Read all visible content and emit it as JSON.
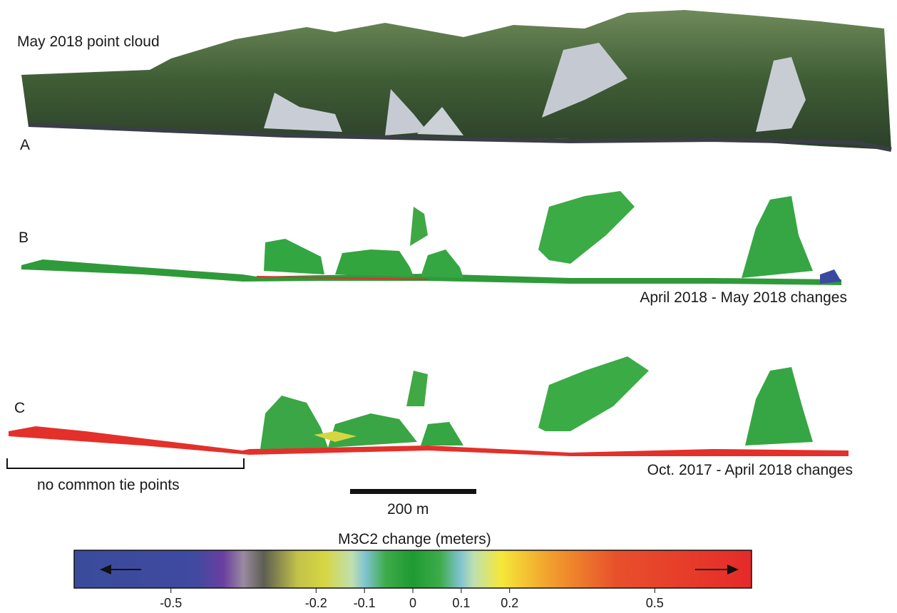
{
  "panels": {
    "a": {
      "letter": "A",
      "title": "May 2018 point cloud"
    },
    "b": {
      "letter": "B",
      "caption": "April 2018 - May 2018 changes"
    },
    "c": {
      "letter": "C",
      "caption": "Oct. 2017 - April 2018 changes"
    }
  },
  "annotation": {
    "bracket_label": "no common tie points"
  },
  "scale_bar": {
    "label": "200 m"
  },
  "colorbar": {
    "title": "M3C2 change (meters)",
    "tick_labels": [
      "-0.5",
      "-0.2",
      "-0.1",
      "0",
      "0.1",
      "0.2",
      "0.5"
    ],
    "tick_values": [
      -0.5,
      -0.2,
      -0.1,
      0,
      0.1,
      0.2,
      0.5
    ],
    "range": [
      -0.7,
      0.7
    ],
    "colors": {
      "negative": "#3b4a9a",
      "zero": "#2fa33a",
      "positive": "#e8302a"
    }
  }
}
